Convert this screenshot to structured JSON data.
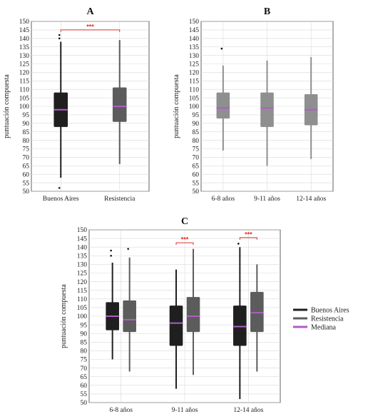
{
  "colors": {
    "buenos_aires": "#1f1f1f",
    "resistencia": "#5c5c5c",
    "age": "#8f8f8f",
    "median": "#b05cc4",
    "significance": "#e0312b",
    "grid": "#d9d9d9"
  },
  "chart_data": [
    {
      "panel": "A",
      "type": "box",
      "title": "A",
      "ylabel": "puntuación compuesta",
      "ylim": [
        50,
        150
      ],
      "yticks": [
        50,
        55,
        60,
        65,
        70,
        75,
        80,
        85,
        90,
        95,
        100,
        105,
        110,
        115,
        120,
        125,
        130,
        135,
        140,
        145,
        150
      ],
      "grid": true,
      "categories": [
        "Buenos Aires",
        "Resistencia"
      ],
      "boxes": [
        {
          "category": "Buenos Aires",
          "whisker_low": 58,
          "q1": 88,
          "median": 98,
          "q3": 108,
          "whisker_high": 138,
          "outliers": [
            140,
            142,
            52
          ],
          "color": "#1f1f1f"
        },
        {
          "category": "Resistencia",
          "whisker_low": 66,
          "q1": 91,
          "median": 100,
          "q3": 111,
          "whisker_high": 139,
          "outliers": [],
          "color": "#5c5c5c"
        }
      ],
      "significance": [
        {
          "from": 0,
          "to": 1,
          "label": "***"
        }
      ]
    },
    {
      "panel": "B",
      "type": "box",
      "title": "B",
      "ylabel": "puntuación compuesta",
      "ylim": [
        50,
        150
      ],
      "yticks": [
        50,
        55,
        60,
        65,
        70,
        75,
        80,
        85,
        90,
        95,
        100,
        105,
        110,
        115,
        120,
        125,
        130,
        135,
        140,
        145,
        150
      ],
      "grid": true,
      "categories": [
        "6-8 años",
        "9-11 años",
        "12-14 años"
      ],
      "boxes": [
        {
          "category": "6-8 años",
          "whisker_low": 74,
          "q1": 93,
          "median": 99,
          "q3": 108,
          "whisker_high": 124,
          "outliers": [
            134
          ],
          "color": "#8f8f8f"
        },
        {
          "category": "9-11 años",
          "whisker_low": 65,
          "q1": 88,
          "median": 99,
          "q3": 108,
          "whisker_high": 127,
          "outliers": [],
          "color": "#8f8f8f"
        },
        {
          "category": "12-14 años",
          "whisker_low": 69,
          "q1": 89,
          "median": 98,
          "q3": 107,
          "whisker_high": 129,
          "outliers": [],
          "color": "#8f8f8f"
        }
      ],
      "significance": []
    },
    {
      "panel": "C",
      "type": "box",
      "title": "C",
      "ylabel": "puntuación compuesta",
      "ylim": [
        50,
        150
      ],
      "yticks": [
        50,
        55,
        60,
        65,
        70,
        75,
        80,
        85,
        90,
        95,
        100,
        105,
        110,
        115,
        120,
        125,
        130,
        135,
        140,
        145,
        150
      ],
      "grid": true,
      "categories": [
        "6-8 años",
        "9-11 años",
        "12-14 años"
      ],
      "series": [
        {
          "name": "Buenos Aires",
          "color": "#1f1f1f",
          "boxes": [
            {
              "whisker_low": 75,
              "q1": 92,
              "median": 100,
              "q3": 108,
              "whisker_high": 131,
              "outliers": [
                135,
                138
              ]
            },
            {
              "whisker_low": 58,
              "q1": 83,
              "median": 96,
              "q3": 106,
              "whisker_high": 127,
              "outliers": []
            },
            {
              "whisker_low": 52,
              "q1": 83,
              "median": 94,
              "q3": 106,
              "whisker_high": 140,
              "outliers": [
                142
              ]
            }
          ]
        },
        {
          "name": "Resistencia",
          "color": "#5c5c5c",
          "boxes": [
            {
              "whisker_low": 68,
              "q1": 91,
              "median": 98,
              "q3": 109,
              "whisker_high": 134,
              "outliers": [
                139
              ]
            },
            {
              "whisker_low": 66,
              "q1": 91,
              "median": 100,
              "q3": 111,
              "whisker_high": 139,
              "outliers": []
            },
            {
              "whisker_low": 68,
              "q1": 91,
              "median": 102,
              "q3": 114,
              "whisker_high": 130,
              "outliers": []
            }
          ]
        }
      ],
      "significance": [
        {
          "category": "9-11 años",
          "label": "***"
        },
        {
          "category": "12-14 años",
          "label": "***"
        }
      ],
      "legend": {
        "placement": "right",
        "entries": [
          "Buenos Aires",
          "Resistencia",
          "Mediana"
        ]
      }
    }
  ]
}
